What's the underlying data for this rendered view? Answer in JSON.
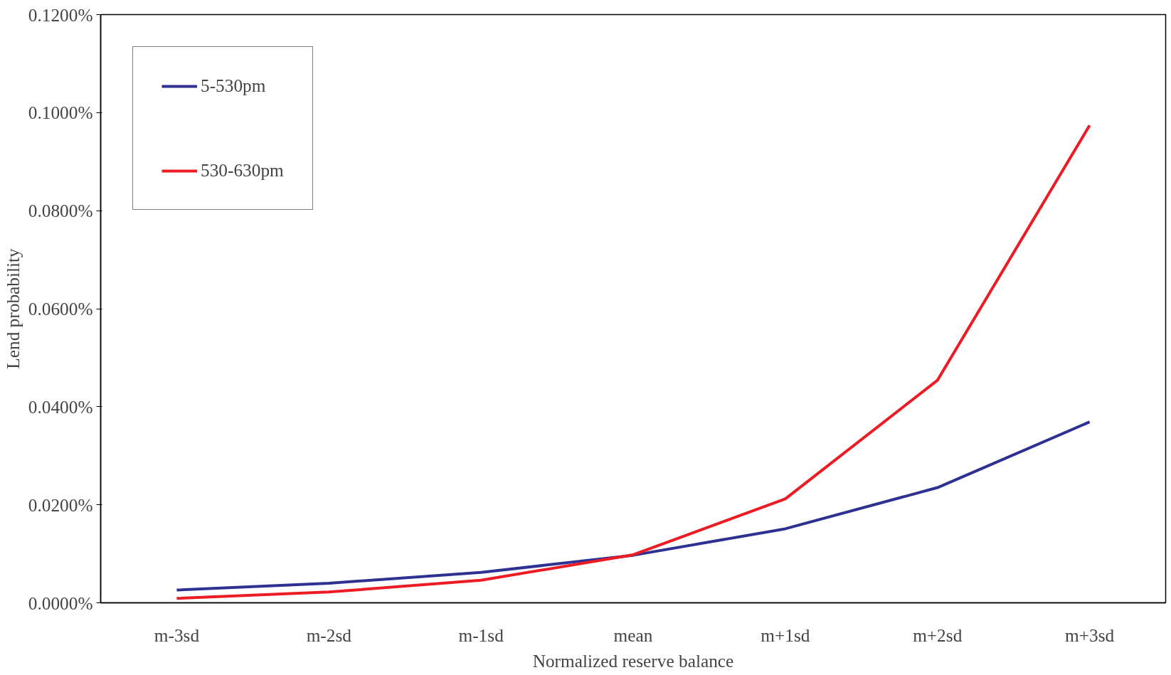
{
  "chart_data": {
    "type": "line",
    "xlabel": "Normalized reserve balance",
    "ylabel": "Lend probability",
    "categories": [
      "m-3sd",
      "m-2sd",
      "m-1sd",
      "mean",
      "m+1sd",
      "m+2sd",
      "m+3sd"
    ],
    "series": [
      {
        "name": "5-530pm",
        "color": "#2e3192",
        "values": [
          0.0026,
          0.004,
          0.0062,
          0.0097,
          0.0151,
          0.0235,
          0.0369
        ]
      },
      {
        "name": "530-630pm",
        "color": "#ed1c24",
        "values": [
          0.0009,
          0.0022,
          0.0046,
          0.0098,
          0.0212,
          0.0454,
          0.0974
        ]
      }
    ],
    "ylim": [
      0,
      0.12
    ],
    "yticks": [
      {
        "value": 0,
        "label": "0.0000%"
      },
      {
        "value": 0.02,
        "label": "0.0200%"
      },
      {
        "value": 0.04,
        "label": "0.0400%"
      },
      {
        "value": 0.06,
        "label": "0.0600%"
      },
      {
        "value": 0.08,
        "label": "0.0800%"
      },
      {
        "value": 0.1,
        "label": "0.1000%"
      },
      {
        "value": 0.12,
        "label": "0.1200%"
      }
    ],
    "grid": false,
    "legend": "top left",
    "marker": "none",
    "line_style": "solid"
  }
}
